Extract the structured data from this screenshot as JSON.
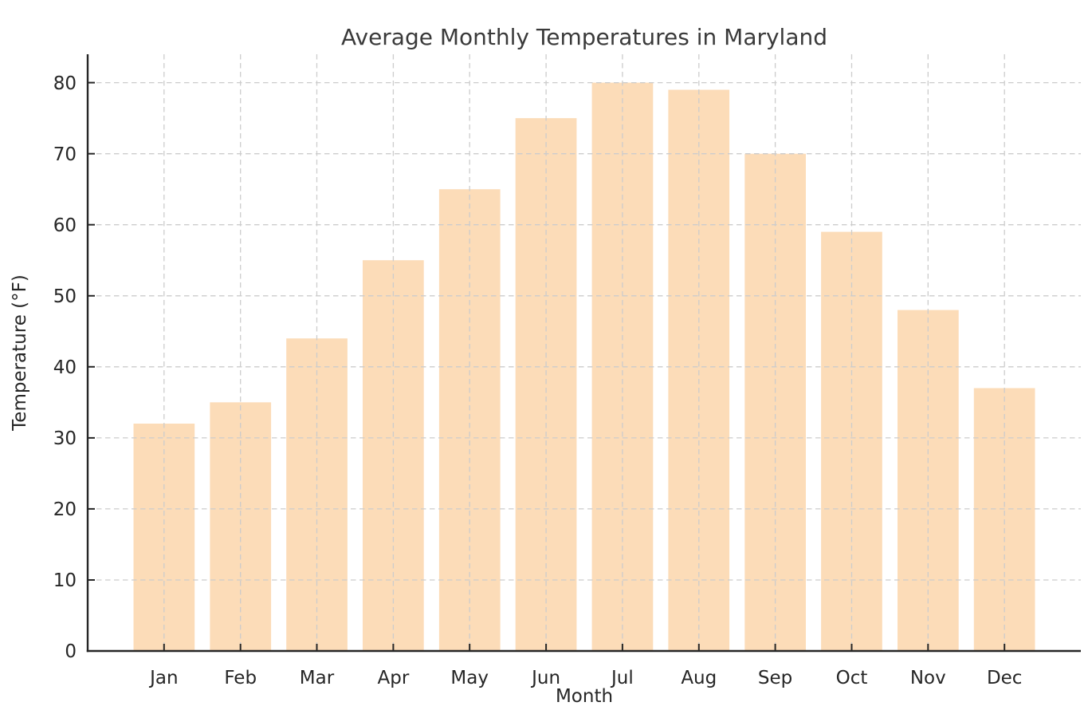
{
  "page": {
    "background": "#ffffff"
  },
  "chart_data": {
    "type": "bar",
    "title": "Average Monthly Temperatures in Maryland",
    "xlabel": "Month",
    "ylabel": "Temperature (°F)",
    "categories": [
      "Jan",
      "Feb",
      "Mar",
      "Apr",
      "May",
      "Jun",
      "Jul",
      "Aug",
      "Sep",
      "Oct",
      "Nov",
      "Dec"
    ],
    "values": [
      32,
      35,
      44,
      55,
      65,
      75,
      80,
      79,
      70,
      59,
      48,
      37
    ],
    "ylim": [
      0,
      84
    ],
    "yticks": [
      0,
      10,
      20,
      30,
      40,
      50,
      60,
      70,
      80
    ],
    "grid": {
      "visible": true,
      "style": "dashed",
      "axes": "both",
      "drawn_over_bars": true
    },
    "legend_position": "none",
    "bar_color": "#fcdcb8",
    "grid_color": "#cccccc",
    "spine_color": "#262626",
    "text_color": "#262626",
    "title_color": "#3a3a3a"
  }
}
